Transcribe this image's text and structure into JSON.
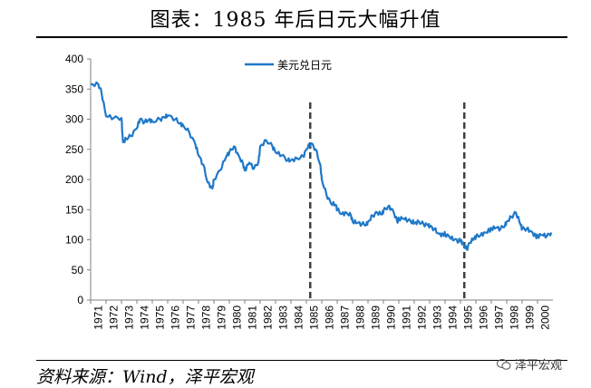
{
  "page": {
    "title": "图表：1985 年后日元大幅升值",
    "source": "资料来源：Wind，泽平宏观",
    "watermark": "泽平宏观"
  },
  "colors": {
    "series": "#1f78c8",
    "axis": "#808080",
    "marker_line": "#404040"
  },
  "chart_data": {
    "type": "line",
    "title": "",
    "xlabel": "",
    "ylabel": "",
    "ylim": [
      0,
      400
    ],
    "y_ticks": [
      0,
      50,
      100,
      150,
      200,
      250,
      300,
      350,
      400
    ],
    "x_ticks": [
      "1971",
      "1972",
      "1973",
      "1974",
      "1975",
      "1976",
      "1977",
      "1978",
      "1979",
      "1980",
      "1981",
      "1982",
      "1983",
      "1984",
      "1985",
      "1986",
      "1987",
      "1988",
      "1989",
      "1990",
      "1991",
      "1992",
      "1993",
      "1994",
      "1995",
      "1996",
      "1997",
      "1998",
      "1999",
      "2000"
    ],
    "xlim": [
      1971,
      2001
    ],
    "grid": false,
    "legend_position": "top",
    "vertical_markers": [
      1985.25,
      1995.25
    ],
    "series": [
      {
        "name": "美元兑日元",
        "x": [
          1971.0,
          1971.5,
          1971.7,
          1972.0,
          1972.5,
          1973.0,
          1973.1,
          1973.3,
          1973.6,
          1974.0,
          1974.2,
          1974.5,
          1974.8,
          1975.0,
          1975.5,
          1975.8,
          1976.0,
          1976.5,
          1976.8,
          1977.0,
          1977.4,
          1977.8,
          1978.0,
          1978.3,
          1978.6,
          1978.9,
          1979.0,
          1979.4,
          1979.8,
          1980.0,
          1980.3,
          1980.6,
          1980.9,
          1981.0,
          1981.3,
          1981.6,
          1981.9,
          1982.0,
          1982.4,
          1982.8,
          1983.0,
          1983.4,
          1983.8,
          1984.0,
          1984.4,
          1984.8,
          1985.0,
          1985.3,
          1985.6,
          1985.9,
          1986.0,
          1986.3,
          1986.6,
          1986.9,
          1987.0,
          1987.3,
          1987.6,
          1987.9,
          1988.0,
          1988.3,
          1988.6,
          1988.9,
          1989.0,
          1989.3,
          1989.6,
          1989.9,
          1990.0,
          1990.3,
          1990.6,
          1990.9,
          1991.0,
          1991.3,
          1991.6,
          1991.9,
          1992.0,
          1992.3,
          1992.6,
          1992.9,
          1993.0,
          1993.3,
          1993.6,
          1993.9,
          1994.0,
          1994.3,
          1994.6,
          1994.9,
          1995.0,
          1995.2,
          1995.4,
          1995.6,
          1995.9,
          1996.0,
          1996.3,
          1996.6,
          1996.9,
          1997.0,
          1997.3,
          1997.6,
          1997.9,
          1998.0,
          1998.3,
          1998.6,
          1998.9,
          1999.0,
          1999.3,
          1999.6,
          1999.9,
          2000.0,
          2000.3,
          2000.6,
          2000.9
        ],
        "values": [
          358,
          358,
          345,
          305,
          302,
          302,
          262,
          268,
          272,
          285,
          300,
          295,
          300,
          296,
          300,
          303,
          306,
          300,
          293,
          290,
          278,
          258,
          240,
          225,
          195,
          185,
          200,
          215,
          238,
          245,
          255,
          240,
          225,
          215,
          228,
          218,
          230,
          255,
          265,
          255,
          245,
          240,
          232,
          232,
          235,
          238,
          250,
          260,
          250,
          225,
          200,
          175,
          160,
          158,
          150,
          143,
          145,
          140,
          130,
          128,
          126,
          126,
          130,
          140,
          145,
          142,
          148,
          155,
          150,
          130,
          135,
          135,
          132,
          130,
          128,
          130,
          126,
          124,
          122,
          118,
          110,
          108,
          110,
          104,
          100,
          98,
          100,
          92,
          84,
          95,
          103,
          105,
          108,
          112,
          116,
          118,
          120,
          118,
          125,
          130,
          138,
          145,
          125,
          118,
          118,
          114,
          105,
          106,
          108,
          106,
          112
        ]
      }
    ]
  }
}
